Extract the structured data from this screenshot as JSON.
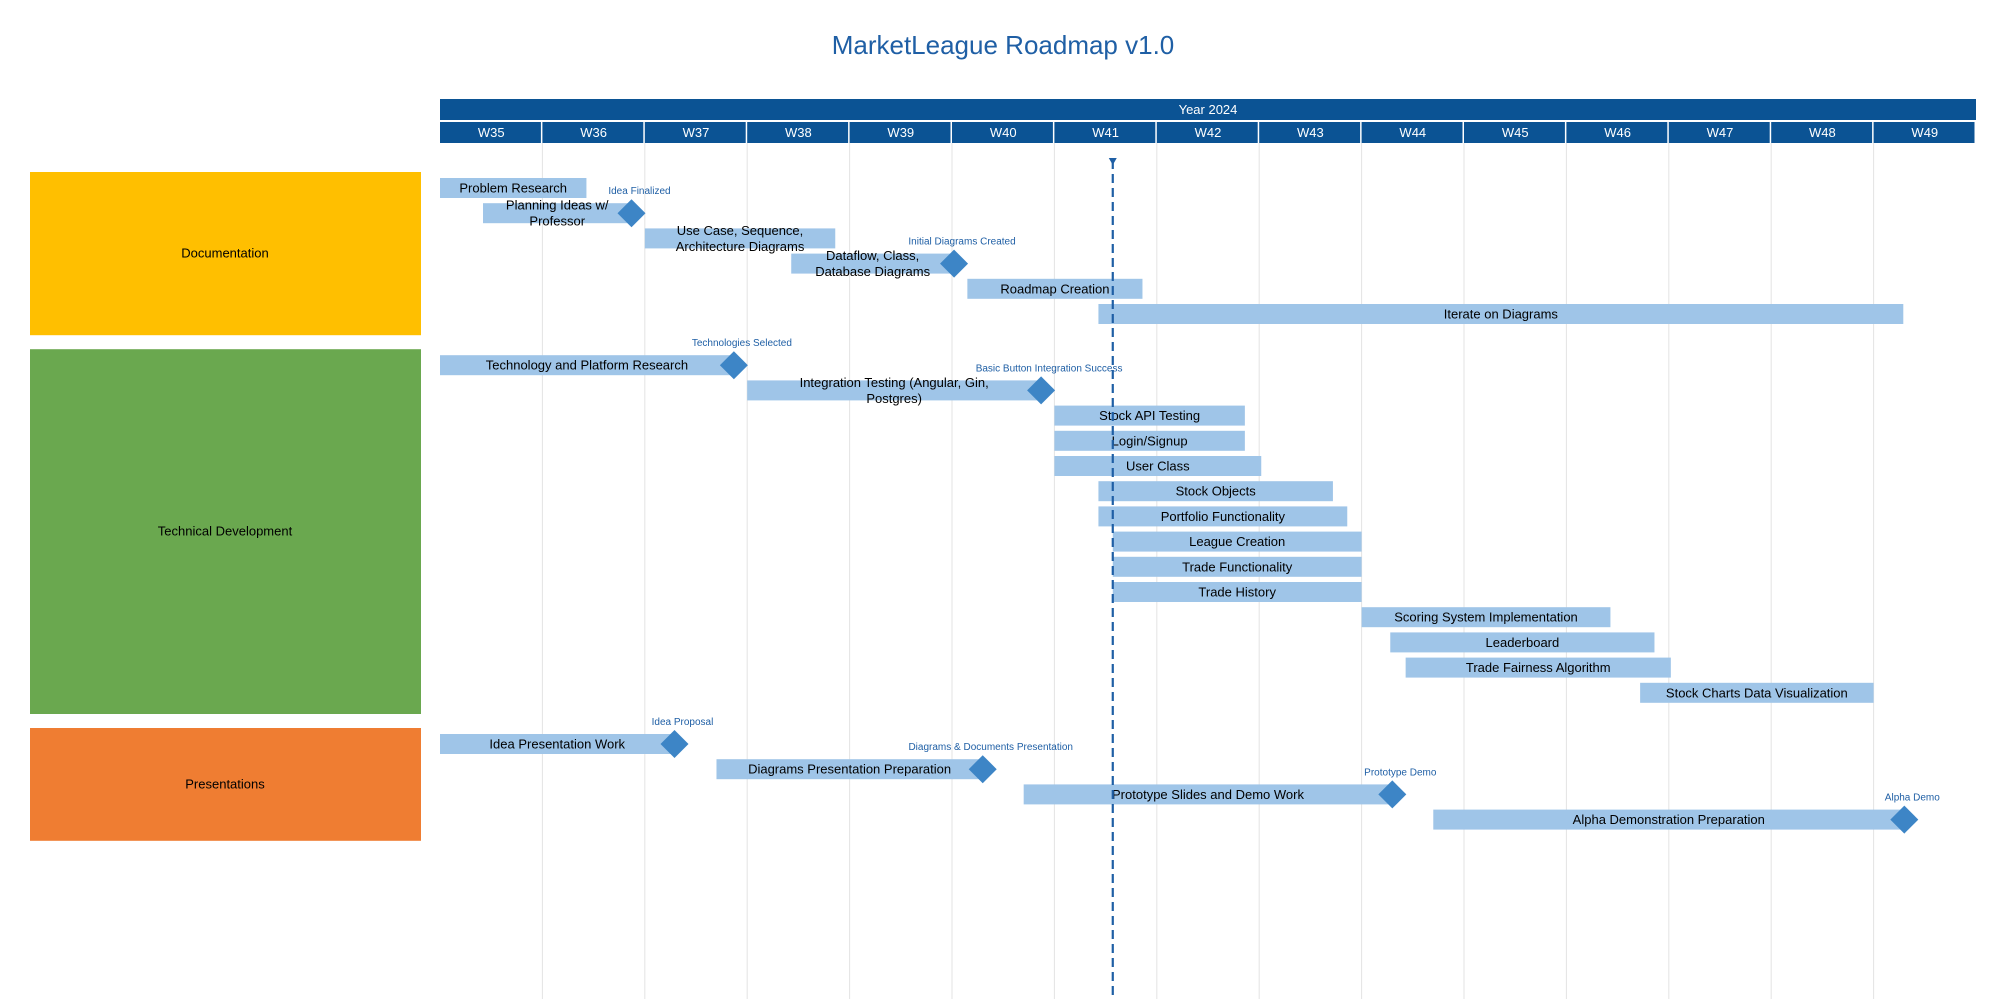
{
  "colors": {
    "title": "#1f5fa5",
    "header": "#0b5394",
    "header_text": "#ffffff",
    "bar": "#9fc5e8",
    "milestone": "#3d85c6",
    "milestone_label": "#1f5fa5",
    "today_line": "#1f5fa5",
    "grid": "#e3e3e3"
  },
  "chart_data": {
    "type": "gantt",
    "title": "MarketLeague Roadmap v1.0",
    "year_label": "Year 2024",
    "weeks": [
      "W35",
      "W36",
      "W37",
      "W38",
      "W39",
      "W40",
      "W41",
      "W42",
      "W43",
      "W44",
      "W45",
      "W46",
      "W47",
      "W48",
      "W49"
    ],
    "today_week": 41.57,
    "groups": [
      {
        "name": "Documentation",
        "color": "#ffbf00",
        "tasks": [
          {
            "label": "Problem Research",
            "start": 35.0,
            "end": 36.43
          },
          {
            "label": "Planning Ideas w/ Professor",
            "start": 35.42,
            "end": 36.87,
            "milestone": {
              "label": "Idea Finalized",
              "week": 36.87
            }
          },
          {
            "label": "Use Case, Sequence, Architecture Diagrams",
            "start": 37.0,
            "end": 38.86
          },
          {
            "label": "Dataflow, Class, Database Diagrams",
            "start": 38.43,
            "end": 40.02,
            "milestone": {
              "label": "Initial Diagrams Created",
              "week": 40.02
            }
          },
          {
            "label": "Roadmap Creation",
            "start": 40.15,
            "end": 41.86
          },
          {
            "label": "Iterate on Diagrams",
            "start": 41.43,
            "end": 49.29
          }
        ]
      },
      {
        "name": "Technical Development",
        "color": "#6aa84f",
        "tasks": [
          {
            "label": "Technology and Platform Research",
            "start": 35.0,
            "end": 37.87,
            "milestone": {
              "label": "Technologies Selected",
              "week": 37.87
            }
          },
          {
            "label": "Integration Testing (Angular, Gin, Postgres)",
            "start": 38.0,
            "end": 40.87,
            "milestone": {
              "label": "Basic Button Integration Success",
              "week": 40.87
            }
          },
          {
            "label": "Stock API Testing",
            "start": 41.0,
            "end": 42.86
          },
          {
            "label": "Login/Signup",
            "start": 41.0,
            "end": 42.86
          },
          {
            "label": "User Class",
            "start": 41.0,
            "end": 43.02
          },
          {
            "label": "Stock Objects",
            "start": 41.43,
            "end": 43.72
          },
          {
            "label": "Portfolio Functionality",
            "start": 41.43,
            "end": 43.86
          },
          {
            "label": "League Creation",
            "start": 41.57,
            "end": 44.0
          },
          {
            "label": "Trade Functionality",
            "start": 41.57,
            "end": 44.0
          },
          {
            "label": "Trade History",
            "start": 41.57,
            "end": 44.0
          },
          {
            "label": "Scoring System Implementation",
            "start": 44.0,
            "end": 46.43
          },
          {
            "label": "Leaderboard",
            "start": 44.28,
            "end": 46.86
          },
          {
            "label": "Trade Fairness Algorithm",
            "start": 44.43,
            "end": 47.02
          },
          {
            "label": "Stock Charts Data Visualization",
            "start": 46.72,
            "end": 49.0
          }
        ]
      },
      {
        "name": "Presentations",
        "color": "#ef7d32",
        "tasks": [
          {
            "label": "Idea Presentation Work",
            "start": 35.0,
            "end": 37.29,
            "milestone": {
              "label": "Idea Proposal",
              "week": 37.29
            }
          },
          {
            "label": "Diagrams Presentation Preparation",
            "start": 37.7,
            "end": 40.3,
            "milestone": {
              "label": "Diagrams & Documents Presentation",
              "week": 40.3
            }
          },
          {
            "label": "Prototype Slides and Demo Work",
            "start": 40.7,
            "end": 44.3,
            "milestone": {
              "label": "Prototype Demo",
              "week": 44.3
            }
          },
          {
            "label": "Alpha Demonstration Preparation",
            "start": 44.7,
            "end": 49.3,
            "milestone": {
              "label": "Alpha Demo",
              "week": 49.3
            }
          }
        ]
      }
    ]
  }
}
